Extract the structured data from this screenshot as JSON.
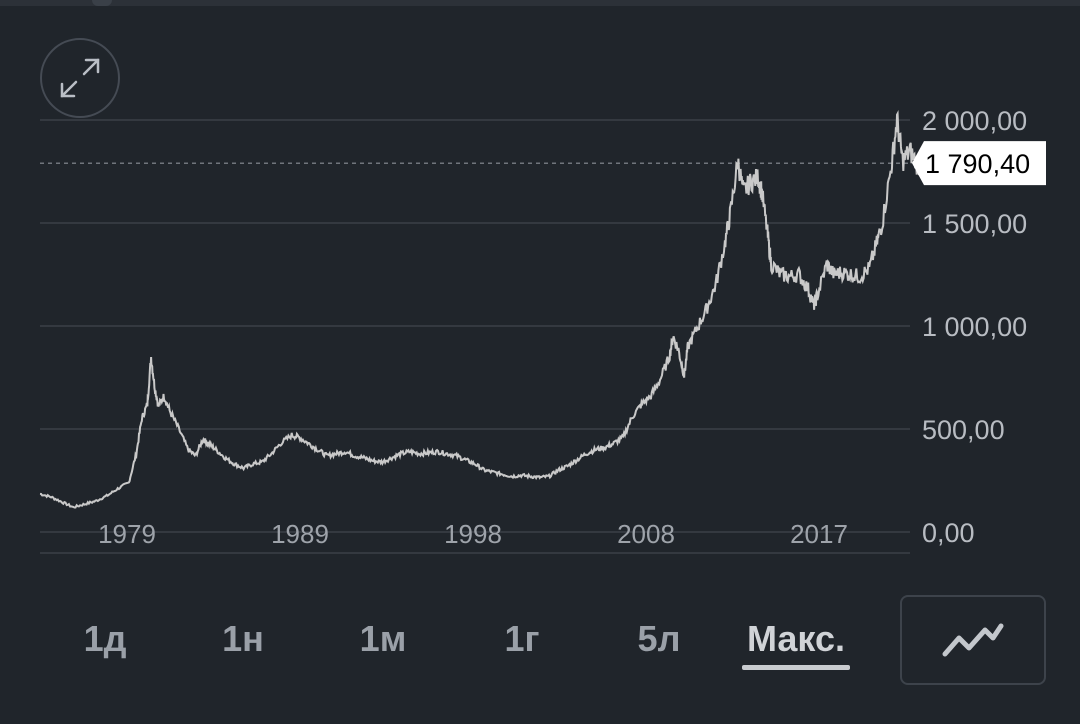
{
  "chart_data": {
    "type": "line",
    "title": "",
    "xlabel": "",
    "ylabel": "",
    "x_tick_labels": [
      "1979",
      "1989",
      "1998",
      "2008",
      "2017"
    ],
    "y_tick_labels": [
      "2 000,00",
      "1 500,00",
      "1 000,00",
      "500,00",
      "0,00"
    ],
    "y_tick_values": [
      2000,
      1500,
      1000,
      500,
      0
    ],
    "ylim": [
      0,
      2000
    ],
    "xlim": [
      1974,
      2021
    ],
    "grid": true,
    "current_value": 1790.4,
    "current_label": "1 790,40",
    "line_color": "#c9c9c9",
    "series": [
      {
        "x": [
          1974.0,
          1974.6,
          1975.2,
          1975.8,
          1976.4,
          1977.0,
          1977.6,
          1978.2,
          1978.8,
          1979.2,
          1979.5,
          1979.8,
          1980.0,
          1980.2,
          1980.4,
          1980.7,
          1981.0,
          1981.5,
          1982.0,
          1982.4,
          1982.8,
          1983.1,
          1983.5,
          1984.0,
          1984.5,
          1985.0,
          1985.5,
          1986.0,
          1986.5,
          1987.0,
          1987.6,
          1988.0,
          1988.5,
          1989.0,
          1989.5,
          1990.0,
          1990.5,
          1991.0,
          1991.5,
          1992.0,
          1992.5,
          1993.0,
          1993.5,
          1994.0,
          1994.5,
          1995.0,
          1995.5,
          1996.0,
          1996.5,
          1997.0,
          1997.5,
          1998.0,
          1998.5,
          1999.0,
          1999.5,
          2000.0,
          2000.5,
          2001.0,
          2001.5,
          2002.0,
          2002.5,
          2003.0,
          2003.5,
          2004.0,
          2004.5,
          2005.0,
          2005.5,
          2006.0,
          2006.5,
          2007.0,
          2007.5,
          2008.0,
          2008.2,
          2008.5,
          2008.8,
          2009.0,
          2009.5,
          2010.0,
          2010.5,
          2011.0,
          2011.3,
          2011.7,
          2012.0,
          2012.4,
          2012.8,
          2013.0,
          2013.3,
          2013.5,
          2014.0,
          2014.5,
          2015.0,
          2015.5,
          2015.8,
          2016.0,
          2016.5,
          2016.9,
          2017.3,
          2017.8,
          2018.3,
          2018.8,
          2019.2,
          2019.5,
          2020.0,
          2020.3,
          2020.6,
          2021.0,
          2021.4,
          2021.8
        ],
        "values": [
          185,
          170,
          145,
          120,
          135,
          150,
          175,
          210,
          240,
          380,
          550,
          620,
          850,
          700,
          610,
          660,
          590,
          500,
          400,
          370,
          450,
          430,
          400,
          360,
          330,
          310,
          330,
          340,
          380,
          430,
          470,
          460,
          430,
          400,
          370,
          380,
          390,
          370,
          360,
          345,
          340,
          360,
          380,
          390,
          380,
          385,
          390,
          380,
          370,
          350,
          330,
          300,
          290,
          280,
          270,
          275,
          270,
          265,
          270,
          300,
          320,
          350,
          380,
          400,
          410,
          430,
          460,
          560,
          620,
          660,
          740,
          850,
          950,
          880,
          760,
          900,
          990,
          1080,
          1200,
          1400,
          1550,
          1800,
          1650,
          1700,
          1720,
          1650,
          1450,
          1300,
          1250,
          1240,
          1250,
          1180,
          1100,
          1150,
          1300,
          1250,
          1260,
          1250,
          1240,
          1280,
          1400,
          1500,
          1780,
          2000,
          1800,
          1850,
          1780,
          1790
        ]
      }
    ]
  },
  "controls": {
    "expand_icon": "expand-diagonal-icon",
    "chart_type_icon": "line-chart-icon",
    "range_buttons": [
      "1д",
      "1н",
      "1м",
      "1г",
      "5л",
      "Макс."
    ],
    "active_range": "Макс."
  }
}
